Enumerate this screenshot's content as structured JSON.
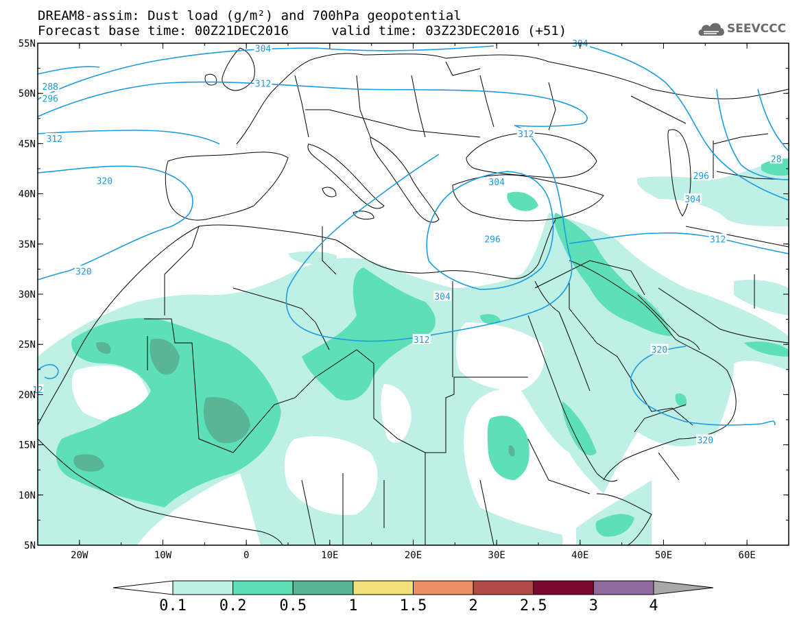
{
  "header": {
    "title_line1": "DREAM8-assim: Dust load (g/m²) and 700hPa geopotential",
    "title_line2": "Forecast base time: 00Z21DEC2016",
    "valid_time": "valid time: 03Z23DEC2016 (+51)"
  },
  "logo": {
    "text": "SEEVCCC",
    "icon": "cloud-icon",
    "color": "#6b6b6b"
  },
  "chart_data": {
    "type": "map",
    "projection": "lat-lon",
    "xlim": [
      -25,
      65
    ],
    "ylim": [
      5,
      55
    ],
    "lon_ticks": [
      -20,
      -10,
      0,
      10,
      20,
      30,
      40,
      50,
      60
    ],
    "lon_tick_labels": [
      "20W",
      "10W",
      "0",
      "10E",
      "20E",
      "30E",
      "40E",
      "50E",
      "60E"
    ],
    "lat_ticks": [
      55,
      50,
      45,
      40,
      35,
      30,
      25,
      20,
      15,
      10,
      5
    ],
    "lat_tick_labels": [
      "55N",
      "50N",
      "45N",
      "40N",
      "35N",
      "30N",
      "25N",
      "20N",
      "15N",
      "10N",
      "5N"
    ],
    "colorbar": {
      "levels": [
        "0.1",
        "0.2",
        "0.5",
        "1",
        "1.5",
        "2",
        "2.5",
        "3",
        "4"
      ],
      "colors": [
        "#ffffff",
        "#bff0e6",
        "#5de0b7",
        "#58b595",
        "#f2e47a",
        "#eb9164",
        "#b04b45",
        "#7a0a2f",
        "#8e6a9e",
        "#a8a8a8"
      ]
    },
    "contours": {
      "color": "#1c9be0",
      "labels": [
        {
          "text": "304",
          "lon": 2,
          "lat": 54.5
        },
        {
          "text": "312",
          "lon": 2,
          "lat": 51
        },
        {
          "text": "288",
          "lon": -23.5,
          "lat": 50.7
        },
        {
          "text": "296",
          "lon": -23.5,
          "lat": 49.5
        },
        {
          "text": "312",
          "lon": -23,
          "lat": 45.5
        },
        {
          "text": "320",
          "lon": -17,
          "lat": 41.3
        },
        {
          "text": "320",
          "lon": -19.5,
          "lat": 32.3
        },
        {
          "text": "312",
          "lon": 33.5,
          "lat": 46
        },
        {
          "text": "304",
          "lon": 30,
          "lat": 41.2
        },
        {
          "text": "296",
          "lon": 29.5,
          "lat": 35.5
        },
        {
          "text": "304",
          "lon": 23.5,
          "lat": 29.8
        },
        {
          "text": "312",
          "lon": 21,
          "lat": 25.5
        },
        {
          "text": "320",
          "lon": 49.5,
          "lat": 24.5
        },
        {
          "text": "320",
          "lon": 55,
          "lat": 15.5
        },
        {
          "text": "312",
          "lon": 56.5,
          "lat": 35.5
        },
        {
          "text": "304",
          "lon": 53.5,
          "lat": 39.5
        },
        {
          "text": "296",
          "lon": 54.5,
          "lat": 41.8
        },
        {
          "text": "304",
          "lon": 40,
          "lat": 55
        },
        {
          "text": "28",
          "lon": 63.5,
          "lat": 43.5
        },
        {
          "text": "12",
          "lon": -25,
          "lat": 20.5
        }
      ]
    }
  }
}
